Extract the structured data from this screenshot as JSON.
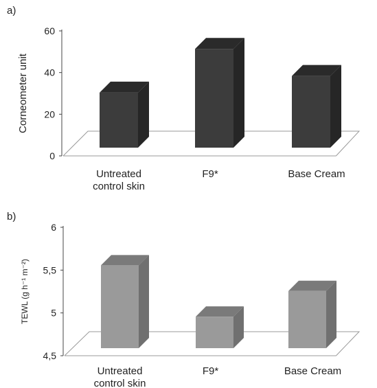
{
  "chart_data": [
    {
      "type": "bar",
      "panel_label": "a)",
      "categories": [
        [
          "Untreated",
          "control skin"
        ],
        [
          "F9*"
        ],
        [
          "Base Cream"
        ]
      ],
      "values": [
        33,
        54,
        41
      ],
      "ylabel": "Corneometer unit",
      "ylim": [
        0,
        60
      ],
      "yticks": [
        "0",
        "20",
        "40",
        "60"
      ],
      "grid": false,
      "bar_color": {
        "front": "#3c3c3c",
        "top": "#2a2a2a",
        "side": "#262626"
      }
    },
    {
      "type": "bar",
      "panel_label": "b)",
      "categories": [
        [
          "Untreated",
          "control skin"
        ],
        [
          "F9*"
        ],
        [
          "Base Cream"
        ]
      ],
      "values": [
        5.62,
        5.02,
        5.32
      ],
      "ylabel": "TEWL (g h⁻¹ m⁻²)",
      "ylim": [
        4.5,
        6
      ],
      "yticks": [
        "4,5",
        "5",
        "5,5",
        "6"
      ],
      "grid": false,
      "bar_color": {
        "front": "#9a9a9a",
        "top": "#7a7a7a",
        "side": "#707070"
      }
    }
  ]
}
